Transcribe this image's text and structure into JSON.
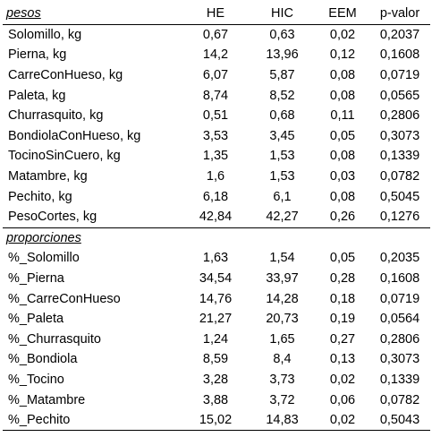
{
  "header": {
    "section_label": "pesos",
    "col_he": "HE",
    "col_hic": "HIC",
    "col_eem": "EEM",
    "col_p": "p-valor"
  },
  "weights": [
    {
      "label": "Solomillo, kg",
      "he": "0,67",
      "hic": "0,63",
      "eem": "0,02",
      "p": "0,2037"
    },
    {
      "label": "Pierna, kg",
      "he": "14,2",
      "hic": "13,96",
      "eem": "0,12",
      "p": "0,1608"
    },
    {
      "label": "CarreConHueso, kg",
      "he": "6,07",
      "hic": "5,87",
      "eem": "0,08",
      "p": "0,0719"
    },
    {
      "label": "Paleta, kg",
      "he": "8,74",
      "hic": "8,52",
      "eem": "0,08",
      "p": "0,0565"
    },
    {
      "label": "Churrasquito, kg",
      "he": "0,51",
      "hic": "0,68",
      "eem": "0,11",
      "p": "0,2806"
    },
    {
      "label": "BondiolaConHueso, kg",
      "he": "3,53",
      "hic": "3,45",
      "eem": "0,05",
      "p": "0,3073"
    },
    {
      "label": "TocinoSinCuero, kg",
      "he": "1,35",
      "hic": "1,53",
      "eem": "0,08",
      "p": "0,1339"
    },
    {
      "label": "Matambre, kg",
      "he": "1,6",
      "hic": "1,53",
      "eem": "0,03",
      "p": "0,0782"
    },
    {
      "label": "Pechito, kg",
      "he": "6,18",
      "hic": "6,1",
      "eem": "0,08",
      "p": "0,5045"
    },
    {
      "label": "PesoCortes, kg",
      "he": "42,84",
      "hic": "42,27",
      "eem": "0,26",
      "p": "0,1276"
    }
  ],
  "proportions_label": "proporciones",
  "proportions": [
    {
      "label": "%_Solomillo",
      "he": "1,63",
      "hic": "1,54",
      "eem": "0,05",
      "p": "0,2035"
    },
    {
      "label": "%_Pierna",
      "he": "34,54",
      "hic": "33,97",
      "eem": "0,28",
      "p": "0,1608"
    },
    {
      "label": "%_CarreConHueso",
      "he": "14,76",
      "hic": "14,28",
      "eem": "0,18",
      "p": "0,0719"
    },
    {
      "label": "%_Paleta",
      "he": "21,27",
      "hic": "20,73",
      "eem": "0,19",
      "p": "0,0564"
    },
    {
      "label": "%_Churrasquito",
      "he": "1,24",
      "hic": "1,65",
      "eem": "0,27",
      "p": "0,2806"
    },
    {
      "label": "%_Bondiola",
      "he": "8,59",
      "hic": "8,4",
      "eem": "0,13",
      "p": "0,3073"
    },
    {
      "label": "%_Tocino",
      "he": "3,28",
      "hic": "3,73",
      "eem": "0,02",
      "p": "0,1339"
    },
    {
      "label": "%_Matambre",
      "he": "3,88",
      "hic": "3,72",
      "eem": "0,06",
      "p": "0,0782"
    },
    {
      "label": "%_Pechito",
      "he": "15,02",
      "hic": "14,83",
      "eem": "0,02",
      "p": "0,5043"
    }
  ]
}
